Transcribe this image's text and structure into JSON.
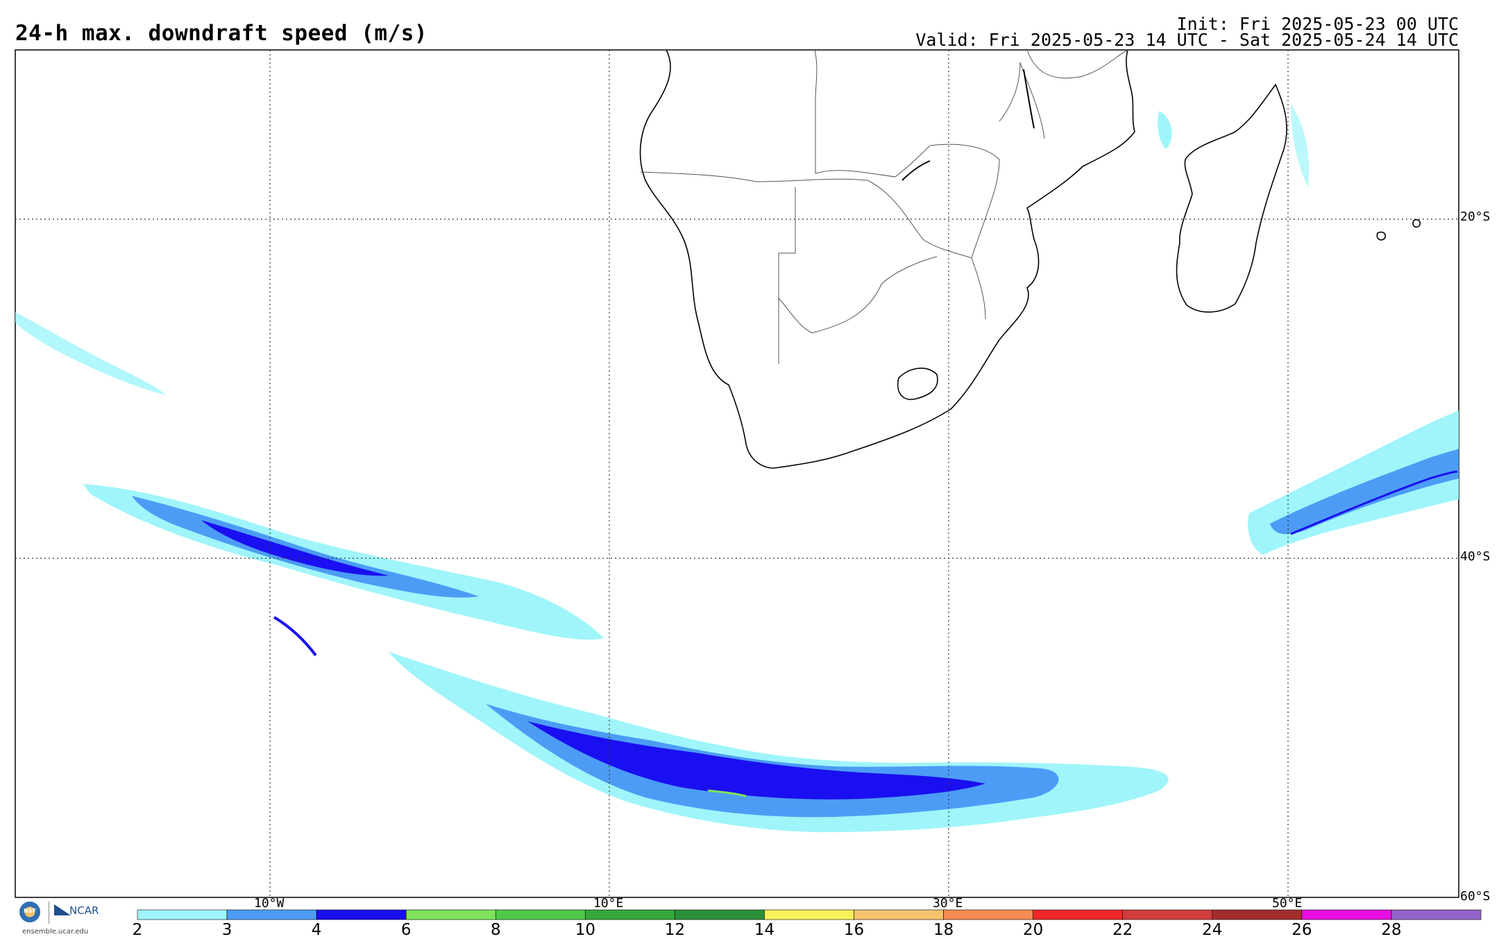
{
  "header": {
    "title": "24-h max. downdraft speed (m/s)",
    "init": "Init: Fri 2025-05-23 00 UTC",
    "valid": "Valid: Fri 2025-05-23 14 UTC - Sat 2025-05-24 14 UTC"
  },
  "map": {
    "lon_range": [
      -25,
      60
    ],
    "lat_range": [
      -60,
      -10
    ],
    "lat_labels": [
      {
        "lat": -20,
        "text": "20°S"
      },
      {
        "lat": -40,
        "text": "40°S"
      },
      {
        "lat": -60,
        "text": "60°S"
      }
    ],
    "lon_labels": [
      {
        "lon": -10,
        "text": "10°W"
      },
      {
        "lon": 10,
        "text": "10°E"
      },
      {
        "lon": 30,
        "text": "30°E"
      },
      {
        "lon": 50,
        "text": "50°E"
      }
    ],
    "background_color": "#ffffff",
    "gridline_style": "dotted"
  },
  "colorbar": {
    "ticks": [
      "2",
      "3",
      "4",
      "6",
      "8",
      "10",
      "12",
      "14",
      "16",
      "18",
      "20",
      "22",
      "24",
      "26",
      "28"
    ],
    "colors": [
      "#9ff5fa",
      "#4c9cf5",
      "#1a0ff0",
      "#7ee35a",
      "#4fc94a",
      "#35a83a",
      "#2b8f3a",
      "#f7f25a",
      "#f7c46e",
      "#f78c52",
      "#f02626",
      "#d03d3d",
      "#a32c2c",
      "#e60fe0",
      "#9463c9"
    ]
  },
  "logos": {
    "nsf": "NSF",
    "ncar": "NCAR",
    "site": "ensemble.ucar.edu"
  }
}
